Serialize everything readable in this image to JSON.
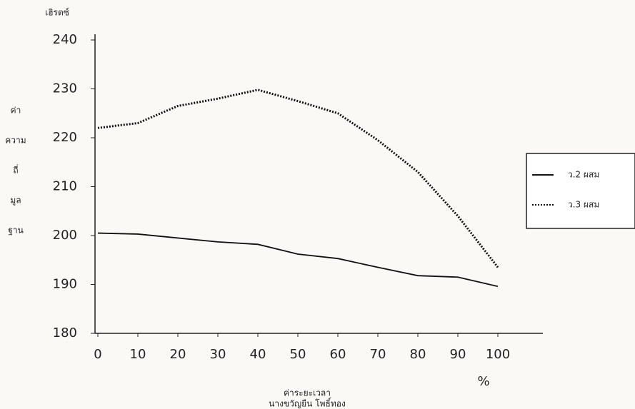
{
  "chart_data": {
    "type": "line",
    "y_unit": "เฮิรตซ์",
    "ylabel": [
      "ค่า",
      "ความ",
      "ถี่",
      "มูล",
      "ฐาน"
    ],
    "xlabel": "ค่าระยะเวลา",
    "author": "นางขวัญยืน โพธิ์ทอง",
    "x_unit": "%",
    "x": [
      0,
      10,
      20,
      30,
      40,
      50,
      60,
      70,
      80,
      90,
      100
    ],
    "series": [
      {
        "name": "ว.2 ผสม",
        "color": "#111111",
        "style": "solid",
        "values": [
          200.5,
          200.3,
          199.5,
          198.7,
          198.2,
          196.2,
          195.3,
          193.5,
          191.8,
          191.5,
          189.6
        ]
      },
      {
        "name": "ว.3 ผสม",
        "color": "#111111",
        "style": "dotted",
        "values": [
          222,
          223,
          226.5,
          228,
          229.8,
          227.5,
          225,
          219.5,
          213,
          204,
          193.5
        ]
      }
    ],
    "xlim": [
      0,
      110
    ],
    "xticks": [
      0,
      10,
      20,
      30,
      40,
      50,
      60,
      70,
      80,
      90,
      100
    ],
    "ylim": [
      180,
      240
    ],
    "yticks": [
      180,
      190,
      200,
      210,
      220,
      230,
      240
    ],
    "grid": false,
    "legend": "right"
  }
}
